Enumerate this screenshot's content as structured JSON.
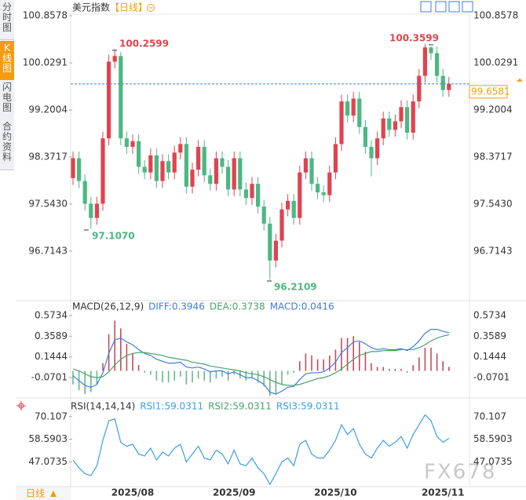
{
  "sidebar_tabs": [
    "分时图",
    "K线图",
    "闪电图",
    "合约资料"
  ],
  "header": {
    "title": "美元指数",
    "period": "【日线】"
  },
  "footer": {
    "period": "日线"
  },
  "watermark": "FX678",
  "chart_data": [
    {
      "type": "candlestick",
      "categories": [
        null,
        null,
        null,
        null,
        null,
        null,
        null,
        null,
        null,
        null,
        "2025/08",
        null,
        null,
        null,
        null,
        null,
        null,
        null,
        null,
        null,
        null,
        null,
        null,
        null,
        null,
        null,
        null,
        "2025/09",
        null,
        null,
        null,
        null,
        null,
        null,
        null,
        null,
        null,
        null,
        null,
        null,
        null,
        null,
        null,
        null,
        "2025/10",
        null,
        null,
        null,
        null,
        null,
        null,
        null,
        null,
        null,
        null,
        null,
        null,
        null,
        null,
        null,
        null,
        null,
        "2025/11",
        null
      ],
      "open": [
        98.0,
        98.35,
        97.95,
        97.55,
        97.3,
        97.55,
        98.7,
        100.05,
        100.15,
        98.7,
        98.55,
        98.65,
        98.2,
        98.1,
        98.4,
        97.95,
        98.3,
        98.1,
        98.45,
        98.6,
        97.85,
        98.15,
        98.55,
        98.05,
        97.9,
        98.35,
        98.2,
        97.8,
        98.35,
        97.8,
        97.65,
        97.9,
        97.5,
        97.2,
        96.55,
        96.9,
        97.45,
        97.6,
        97.3,
        98.1,
        98.35,
        97.9,
        97.75,
        97.7,
        98.1,
        98.6,
        99.35,
        99.1,
        99.4,
        98.9,
        98.55,
        98.35,
        98.7,
        99.05,
        98.85,
        99.0,
        99.25,
        98.8,
        99.35,
        99.8,
        100.3,
        100.2,
        99.8,
        99.55
      ],
      "high": [
        98.47,
        98.47,
        98.07,
        97.67,
        97.67,
        98.82,
        100.17,
        100.2599,
        100.22,
        98.82,
        98.77,
        98.77,
        98.32,
        98.52,
        98.52,
        98.42,
        98.42,
        98.57,
        98.72,
        98.72,
        98.27,
        98.67,
        98.67,
        98.17,
        98.47,
        98.47,
        98.32,
        98.47,
        98.47,
        97.92,
        98.02,
        98.02,
        97.62,
        97.32,
        97.02,
        97.57,
        97.72,
        97.72,
        98.22,
        98.47,
        98.47,
        98.02,
        97.87,
        98.22,
        98.72,
        99.47,
        99.47,
        99.52,
        99.52,
        99.02,
        98.67,
        98.82,
        99.17,
        99.17,
        99.12,
        99.37,
        99.37,
        99.47,
        99.92,
        100.3599,
        100.32,
        100.32,
        99.92,
        99.78
      ],
      "low": [
        97.88,
        97.83,
        97.43,
        97.107,
        97.18,
        97.43,
        98.58,
        99.93,
        98.58,
        98.43,
        98.43,
        98.08,
        97.98,
        97.98,
        97.83,
        97.83,
        97.98,
        97.98,
        98.33,
        97.73,
        97.73,
        98.03,
        97.93,
        97.78,
        97.78,
        98.08,
        97.68,
        97.68,
        97.68,
        97.53,
        97.53,
        97.38,
        97.08,
        96.2109,
        96.43,
        96.78,
        97.33,
        97.18,
        97.18,
        97.98,
        97.78,
        97.63,
        97.58,
        97.58,
        97.98,
        98.48,
        98.98,
        98.98,
        98.78,
        98.43,
        98.03,
        98.23,
        98.58,
        98.73,
        98.73,
        98.88,
        98.68,
        98.68,
        99.23,
        99.68,
        100.08,
        99.68,
        99.43,
        99.43
      ],
      "close": [
        98.35,
        97.95,
        97.55,
        97.3,
        97.55,
        98.7,
        100.05,
        100.15,
        98.7,
        98.55,
        98.65,
        98.2,
        98.1,
        98.4,
        97.95,
        98.3,
        98.1,
        98.45,
        98.6,
        97.85,
        98.15,
        98.55,
        98.05,
        97.9,
        98.35,
        98.2,
        97.8,
        98.35,
        97.8,
        97.65,
        97.9,
        97.5,
        97.2,
        96.55,
        96.9,
        97.45,
        97.6,
        97.3,
        98.1,
        98.35,
        97.9,
        97.75,
        97.7,
        98.1,
        98.6,
        99.35,
        99.1,
        99.4,
        98.9,
        98.55,
        98.35,
        98.7,
        99.05,
        98.85,
        99.0,
        99.25,
        98.8,
        99.35,
        99.8,
        100.3,
        100.2,
        99.8,
        99.55,
        99.66
      ],
      "up_color": "#e0434f",
      "down_color": "#4cb782",
      "ylim": [
        95.886,
        100.886
      ],
      "yticks": [
        96.7143,
        {
          "value": 97.543,
          "label": "97.5430"
        },
        98.3717,
        {
          "value": 99.2004,
          "label": "99.2004"
        },
        100.0291,
        100.8578
      ],
      "current_price": 99.6581,
      "current_color": "#f39c12",
      "annotations": [
        {
          "text": "100.2599",
          "color": "#e0434f"
        },
        {
          "text": "97.1070",
          "color": "#4cb782"
        },
        {
          "text": "96.2109",
          "color": "#4cb782"
        },
        {
          "text": "100.3599",
          "color": "#e0434f"
        }
      ]
    },
    {
      "type": "macd",
      "legend": [
        {
          "text": "MACD(26,12,9)",
          "color": "#333"
        },
        {
          "text": "DIFF:0.3946",
          "color": "#3d7ee0"
        },
        {
          "text": "DEA:0.3738",
          "color": "#49a36c"
        },
        {
          "text": "MACD:0.0416",
          "color": "#3d7ee0"
        }
      ],
      "series": [
        {
          "color": "#3d7ee0",
          "values": [
            -0.05,
            -0.1,
            -0.15,
            -0.17,
            -0.14,
            -0.02,
            0.18,
            0.32,
            0.34,
            0.3,
            0.27,
            0.22,
            0.18,
            0.16,
            0.12,
            0.1,
            0.08,
            0.08,
            0.09,
            0.04,
            0.03,
            0.04,
            0.02,
            -0.01,
            0.0,
            0.0,
            -0.03,
            -0.01,
            -0.04,
            -0.07,
            -0.07,
            -0.1,
            -0.14,
            -0.22,
            -0.24,
            -0.21,
            -0.17,
            -0.16,
            -0.09,
            -0.03,
            -0.02,
            -0.02,
            -0.01,
            0.03,
            0.09,
            0.19,
            0.24,
            0.3,
            0.31,
            0.28,
            0.24,
            0.22,
            0.23,
            0.22,
            0.22,
            0.23,
            0.21,
            0.25,
            0.31,
            0.39,
            0.43,
            0.43,
            0.41,
            0.3946
          ]
        },
        {
          "color": "#49a36c",
          "values": [
            0.02,
            0.0,
            -0.03,
            -0.06,
            -0.07,
            -0.06,
            -0.01,
            0.06,
            0.12,
            0.16,
            0.18,
            0.19,
            0.19,
            0.18,
            0.17,
            0.16,
            0.14,
            0.13,
            0.12,
            0.11,
            0.09,
            0.08,
            0.07,
            0.05,
            0.04,
            0.03,
            0.02,
            0.01,
            0.0,
            -0.02,
            -0.03,
            -0.04,
            -0.06,
            -0.09,
            -0.12,
            -0.14,
            -0.15,
            -0.15,
            -0.14,
            -0.12,
            -0.1,
            -0.08,
            -0.07,
            -0.05,
            -0.02,
            0.02,
            0.07,
            0.12,
            0.16,
            0.18,
            0.2,
            0.2,
            0.21,
            0.21,
            0.21,
            0.22,
            0.22,
            0.22,
            0.24,
            0.27,
            0.31,
            0.34,
            0.36,
            0.3738
          ]
        }
      ],
      "histogram": [
        -0.14,
        -0.2,
        -0.24,
        -0.22,
        -0.14,
        0.08,
        0.38,
        0.52,
        0.44,
        0.28,
        0.18,
        0.06,
        -0.02,
        -0.04,
        -0.1,
        -0.12,
        -0.12,
        -0.1,
        -0.06,
        -0.14,
        -0.12,
        -0.08,
        -0.1,
        -0.12,
        -0.08,
        -0.06,
        -0.1,
        -0.04,
        -0.08,
        -0.1,
        -0.08,
        -0.12,
        -0.16,
        -0.26,
        -0.24,
        -0.14,
        -0.04,
        -0.02,
        0.1,
        0.18,
        0.16,
        0.12,
        0.12,
        0.16,
        0.22,
        0.34,
        0.34,
        0.36,
        0.3,
        0.2,
        0.08,
        0.04,
        0.04,
        0.02,
        0.02,
        0.02,
        -0.02,
        0.06,
        0.14,
        0.24,
        0.24,
        0.18,
        0.1,
        0.0416
      ],
      "up_color": "#c94a5a",
      "down_color": "#66b88a",
      "ylim": [
        -0.264,
        0.727
      ],
      "yticks": [
        -0.0701,
        0.1444,
        0.3589,
        0.5734
      ]
    },
    {
      "type": "line",
      "legend": [
        {
          "text": "RSI(14,14,14)",
          "color": "#333"
        },
        {
          "text": "RSI1:59.0311",
          "color": "#3b9fe0"
        },
        {
          "text": "RSI2:59.0311",
          "color": "#49a36c"
        },
        {
          "text": "RSI3:59.0311",
          "color": "#3b9fe0"
        }
      ],
      "series": [
        {
          "color": "#3b9fe0",
          "values": [
            48,
            44,
            41,
            40,
            45,
            58,
            68,
            69,
            57,
            55,
            56,
            51,
            50,
            54,
            48,
            52,
            50,
            54,
            56,
            47,
            51,
            55,
            49,
            48,
            53,
            51,
            46,
            53,
            46,
            45,
            49,
            44,
            41,
            35.5,
            41,
            47,
            49,
            45,
            56,
            58,
            51,
            49,
            49,
            53,
            58,
            66,
            61,
            64,
            56,
            51,
            49,
            54,
            58,
            55,
            57,
            60,
            54,
            61,
            66,
            71,
            68,
            60,
            57,
            59.0311
          ]
        }
      ],
      "ylim": [
        35.16,
        78.45
      ],
      "yticks": [
        47.0735,
        58.5903,
        70.107
      ]
    }
  ]
}
